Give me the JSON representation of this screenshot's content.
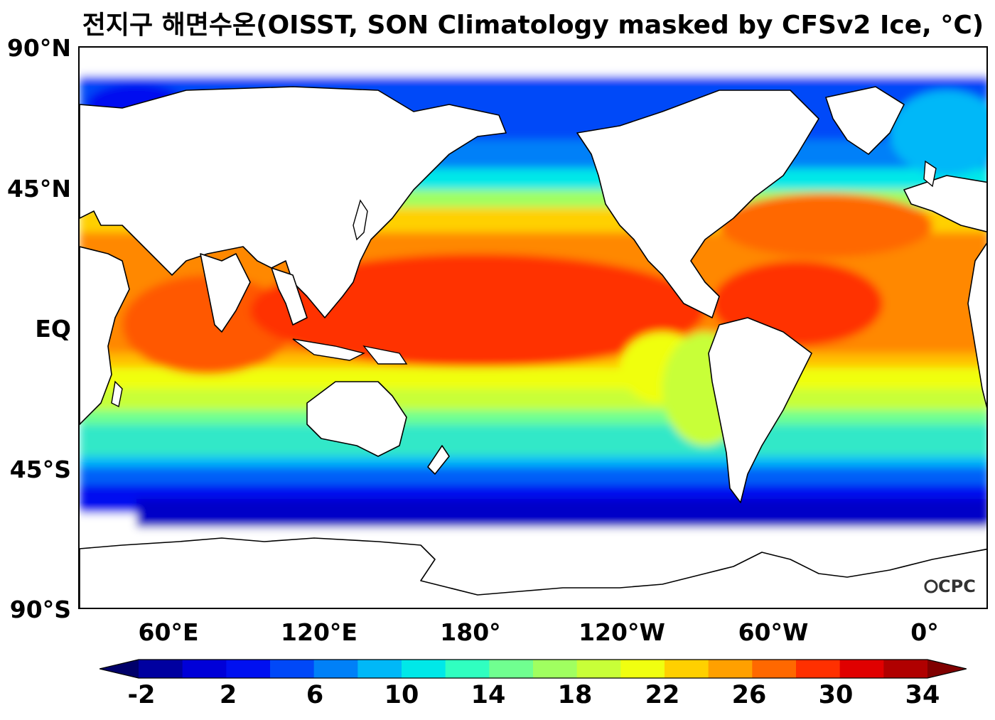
{
  "title": "전지구 해면수온(OISST, SON Climatology masked by CFSv2 Ice, °C)",
  "map": {
    "lat_labels": [
      "90°N",
      "45°N",
      "EQ",
      "45°S",
      "90°S"
    ],
    "lon_labels": [
      "60°E",
      "120°E",
      "180°",
      "120°W",
      "60°W",
      "0°"
    ],
    "logo": "CPC"
  },
  "colorbar": {
    "labels": [
      "-2",
      "2",
      "6",
      "10",
      "14",
      "18",
      "22",
      "26",
      "30",
      "34"
    ],
    "colors": [
      "#0000a0",
      "#0000d8",
      "#0010f0",
      "#0048f8",
      "#0080f8",
      "#00b8f8",
      "#00e8e8",
      "#30ffc0",
      "#70ff90",
      "#a0ff60",
      "#c8ff38",
      "#f0ff10",
      "#ffd000",
      "#ffa000",
      "#ff6800",
      "#ff3000",
      "#e00000",
      "#b00000"
    ],
    "low_extend_color": "#00006a",
    "high_extend_color": "#800000"
  },
  "chart_data": {
    "type": "heatmap",
    "title": "전지구 해면수온(OISST, SON Climatology masked by CFSv2 Ice, °C)",
    "xlabel": "",
    "ylabel": "",
    "variable_unit": "°C",
    "levels_min": -2,
    "levels_max": 34,
    "level_step": 2,
    "projection": "equirectangular",
    "central_longitude": 0,
    "lon_start": 30,
    "lat_range": [
      -90,
      90
    ]
  }
}
